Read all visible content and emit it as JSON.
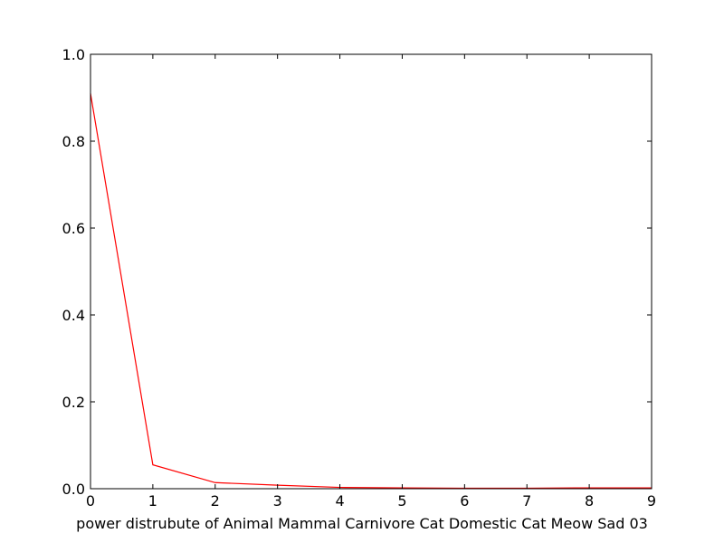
{
  "chart_data": {
    "type": "line",
    "title": "",
    "xlabel": "power distrubute of Animal Mammal Carnivore Cat Domestic Cat Meow Sad 03",
    "ylabel": "",
    "xlim": [
      0,
      9
    ],
    "ylim": [
      0.0,
      1.0
    ],
    "x_ticks": [
      0,
      1,
      2,
      3,
      4,
      5,
      6,
      7,
      8,
      9
    ],
    "x_tick_labels": [
      "0",
      "1",
      "2",
      "3",
      "4",
      "5",
      "6",
      "7",
      "8",
      "9"
    ],
    "y_ticks": [
      0.0,
      0.2,
      0.4,
      0.6,
      0.8,
      1.0
    ],
    "y_tick_labels": [
      "0.0",
      "0.2",
      "0.4",
      "0.6",
      "0.8",
      "1.0"
    ],
    "grid": false,
    "series": [
      {
        "color": "#ff0000",
        "x": [
          0,
          1,
          2,
          3,
          4,
          5,
          6,
          7,
          8,
          9
        ],
        "y": [
          0.91,
          0.055,
          0.014,
          0.008,
          0.003,
          0.002,
          0.001,
          0.001,
          0.002,
          0.002
        ]
      }
    ]
  }
}
